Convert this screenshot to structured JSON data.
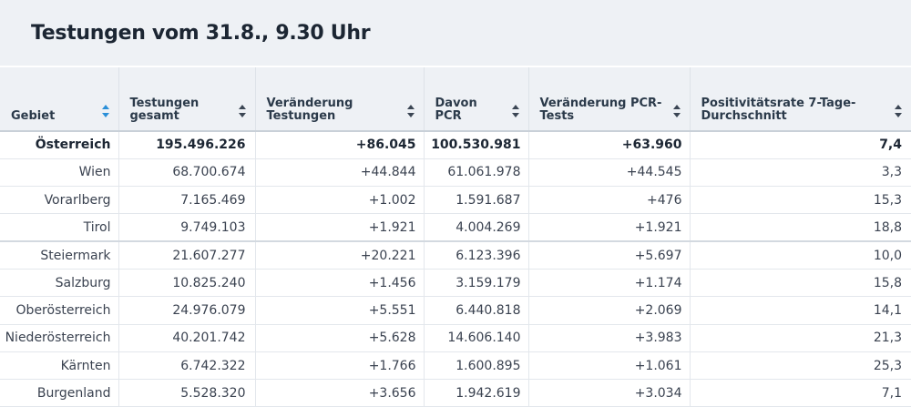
{
  "title": "Testungen vom 31.8., 9.30 Uhr",
  "columns": [
    {
      "label": "Gebiet",
      "sorted": true
    },
    {
      "label": "Testungen gesamt",
      "sorted": false
    },
    {
      "label": "Veränderung Testungen",
      "sorted": false
    },
    {
      "label": "Davon PCR",
      "sorted": false
    },
    {
      "label": "Veränderung PCR-Tests",
      "sorted": false
    },
    {
      "label": "Positivitätsrate 7-Tage-Durchschnitt",
      "sorted": false
    }
  ],
  "rows": [
    {
      "region": "Österreich",
      "total": "195.496.226",
      "change": "+86.045",
      "pcr": "100.530.981",
      "pcr_change": "+63.960",
      "positivity": "7,4",
      "bold": true
    },
    {
      "region": "Wien",
      "total": "68.700.674",
      "change": "+44.844",
      "pcr": "61.061.978",
      "pcr_change": "+44.545",
      "positivity": "3,3"
    },
    {
      "region": "Vorarlberg",
      "total": "7.165.469",
      "change": "+1.002",
      "pcr": "1.591.687",
      "pcr_change": "+476",
      "positivity": "15,3"
    },
    {
      "region": "Tirol",
      "total": "9.749.103",
      "change": "+1.921",
      "pcr": "4.004.269",
      "pcr_change": "+1.921",
      "positivity": "18,8"
    },
    {
      "region": "Steiermark",
      "total": "21.607.277",
      "change": "+20.221",
      "pcr": "6.123.396",
      "pcr_change": "+5.697",
      "positivity": "10,0"
    },
    {
      "region": "Salzburg",
      "total": "10.825.240",
      "change": "+1.456",
      "pcr": "3.159.179",
      "pcr_change": "+1.174",
      "positivity": "15,8"
    },
    {
      "region": "Oberösterreich",
      "total": "24.976.079",
      "change": "+5.551",
      "pcr": "6.440.818",
      "pcr_change": "+2.069",
      "positivity": "14,1"
    },
    {
      "region": "Niederösterreich",
      "total": "40.201.742",
      "change": "+5.628",
      "pcr": "14.606.140",
      "pcr_change": "+3.983",
      "positivity": "21,3"
    },
    {
      "region": "Kärnten",
      "total": "6.742.322",
      "change": "+1.766",
      "pcr": "1.600.895",
      "pcr_change": "+1.061",
      "positivity": "25,3"
    },
    {
      "region": "Burgenland",
      "total": "5.528.320",
      "change": "+3.656",
      "pcr": "1.942.619",
      "pcr_change": "+3.034",
      "positivity": "7,1"
    }
  ]
}
